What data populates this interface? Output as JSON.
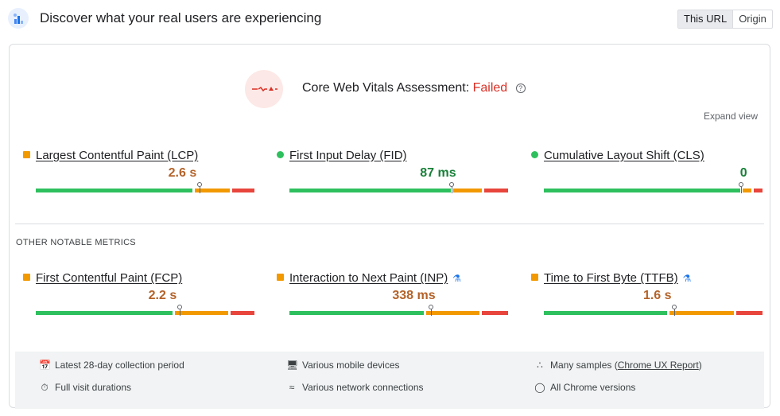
{
  "header": {
    "title": "Discover what your real users are experiencing",
    "toggle": {
      "this_url": "This URL",
      "origin": "Origin"
    }
  },
  "assessment": {
    "label": "Core Web Vitals Assessment:",
    "status": "Failed",
    "help": "?",
    "expand": "Expand view"
  },
  "colors": {
    "good": "#2ec05e",
    "needs_improvement": "#f29900",
    "poor": "#e8453c",
    "failed": "#d93025"
  },
  "core_metrics": [
    {
      "name": "Largest Contentful Paint (LCP)",
      "value": "2.6 s",
      "rating": "needs-improvement",
      "distribution": [
        0.72,
        0.17,
        0.11
      ]
    },
    {
      "name": "First Input Delay (FID)",
      "value": "87 ms",
      "rating": "good",
      "distribution": [
        0.74,
        0.14,
        0.12
      ]
    },
    {
      "name": "Cumulative Layout Shift (CLS)",
      "value": "0",
      "rating": "good",
      "distribution": [
        0.9,
        0.05,
        0.05
      ]
    }
  ],
  "other_section_title": "OTHER NOTABLE METRICS",
  "other_metrics": [
    {
      "name": "First Contentful Paint (FCP)",
      "value": "2.2 s",
      "rating": "needs-improvement",
      "experimental": false,
      "distribution": [
        0.63,
        0.25,
        0.12
      ]
    },
    {
      "name": "Interaction to Next Paint (INP)",
      "value": "338 ms",
      "rating": "needs-improvement",
      "experimental": true,
      "distribution": [
        0.62,
        0.25,
        0.13
      ]
    },
    {
      "name": "Time to First Byte (TTFB)",
      "value": "1.6 s",
      "rating": "needs-improvement",
      "experimental": true,
      "distribution": [
        0.57,
        0.3,
        0.13
      ]
    }
  ],
  "info": {
    "collection_period": "Latest 28-day collection period",
    "devices": "Various mobile devices",
    "samples_prefix": "Many samples (",
    "samples_link": "Chrome UX Report",
    "samples_suffix": ")",
    "durations": "Full visit durations",
    "network": "Various network connections",
    "versions": "All Chrome versions"
  }
}
